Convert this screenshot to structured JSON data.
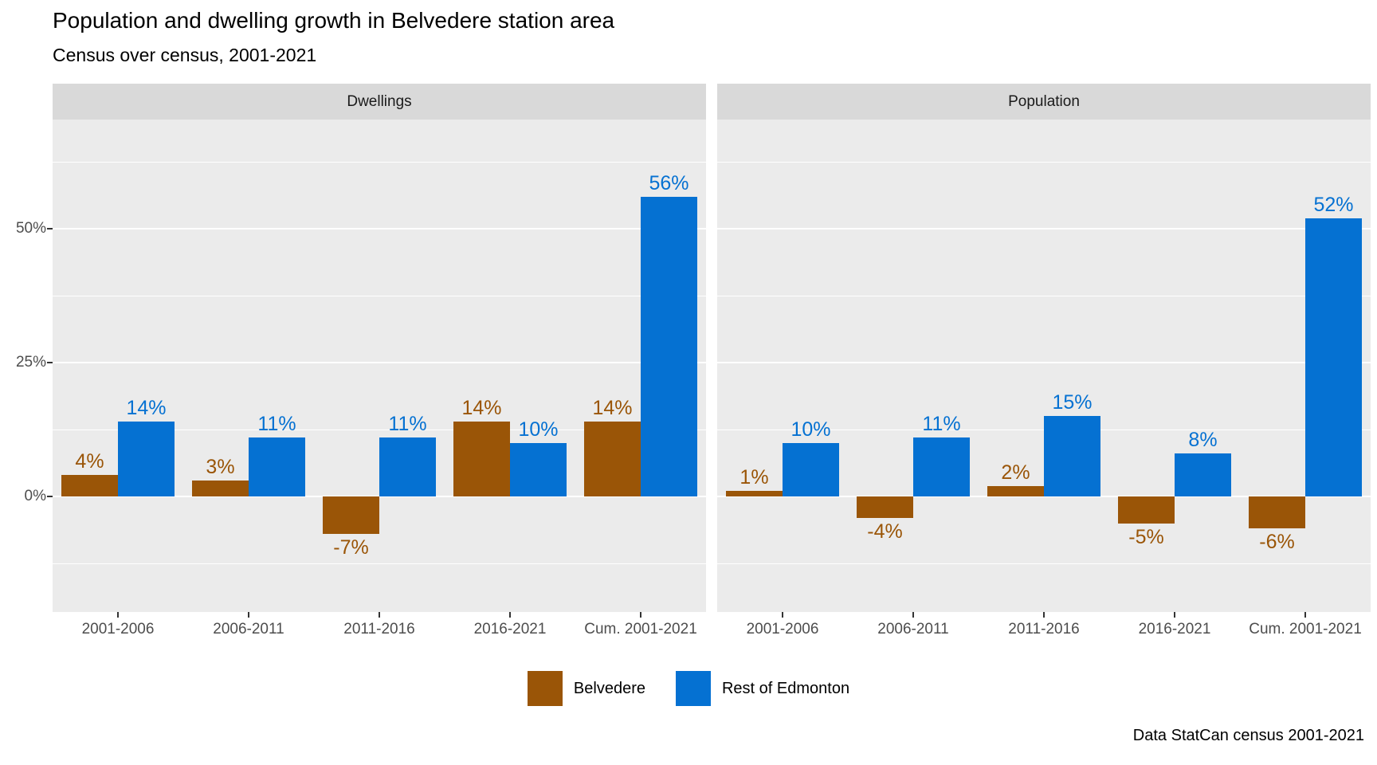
{
  "title": "Population and dwelling growth in Belvedere station area",
  "subtitle": "Census over census, 2001-2021",
  "caption": "Data StatCan census 2001-2021",
  "colors": {
    "belvedere": "#9A5507",
    "rest_of_edmonton": "#0571D2",
    "panel_background": "#EBEBEB",
    "strip_background": "#D9D9D9",
    "gridline": "#FFFFFF",
    "axis_text": "#4D4D4D"
  },
  "legend": {
    "items": [
      {
        "label": "Belvedere",
        "color": "#9A5507"
      },
      {
        "label": "Rest of Edmonton",
        "color": "#0571D2"
      }
    ],
    "position": "bottom-center"
  },
  "axes": {
    "y_ticks": [
      {
        "label": "0%",
        "value": 0
      },
      {
        "label": "25%",
        "value": 25
      },
      {
        "label": "50%",
        "value": 50
      }
    ],
    "minor_gridlines": [
      -12.5,
      12.5,
      37.5,
      62.5
    ],
    "major_gridlines": [
      0,
      25,
      50
    ]
  },
  "chart_data": [
    {
      "type": "bar",
      "facet": "Dwellings",
      "categories": [
        "2001-2006",
        "2006-2011",
        "2011-2016",
        "2016-2021",
        "Cum. 2001-2021"
      ],
      "series": [
        {
          "name": "Belvedere",
          "color": "#9A5507",
          "values": [
            4,
            3,
            -7,
            14,
            14
          ]
        },
        {
          "name": "Rest of Edmonton",
          "color": "#0571D2",
          "values": [
            14,
            11,
            11,
            10,
            56
          ]
        }
      ],
      "unit": "%",
      "xlabel": "",
      "ylabel": "",
      "ylim": [
        -22,
        70
      ],
      "grid": true,
      "data_labels": true
    },
    {
      "type": "bar",
      "facet": "Population",
      "categories": [
        "2001-2006",
        "2006-2011",
        "2011-2016",
        "2016-2021",
        "Cum. 2001-2021"
      ],
      "series": [
        {
          "name": "Belvedere",
          "color": "#9A5507",
          "values": [
            1,
            -4,
            2,
            -5,
            -6
          ]
        },
        {
          "name": "Rest of Edmonton",
          "color": "#0571D2",
          "values": [
            10,
            11,
            15,
            8,
            52
          ]
        }
      ],
      "unit": "%",
      "xlabel": "",
      "ylabel": "",
      "ylim": [
        -22,
        70
      ],
      "grid": true,
      "data_labels": true
    }
  ]
}
